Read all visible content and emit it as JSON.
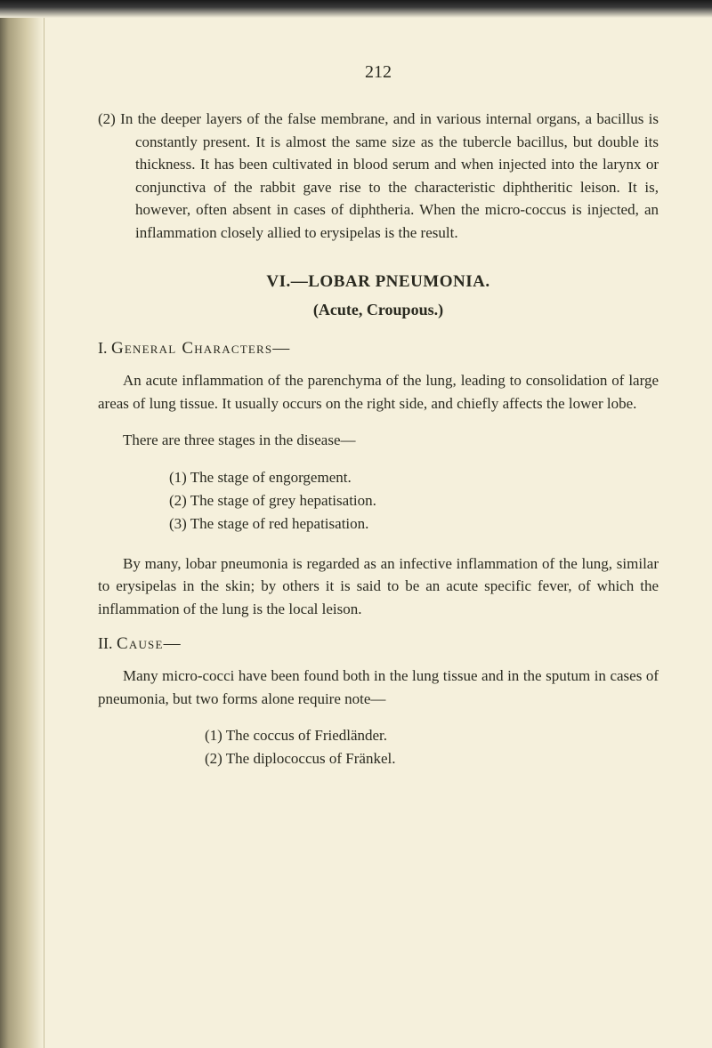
{
  "pageNumber": "212",
  "para1": "(2) In the deeper layers of the false membrane, and in various internal organs, a bacillus is constantly present. It is almost the same size as the tubercle bacillus, but double its thickness. It has been cultivated in blood serum and when injected into the larynx or conjunctiva of the rabbit gave rise to the characteristic diphtheritic leison. It is, however, often absent in cases of diphtheria. When the micro-coccus is injected, an inflammation closely allied to erysipelas is the result.",
  "sectionTitle": "VI.—LOBAR PNEUMONIA.",
  "sectionSubtitle": "(Acute, Croupous.)",
  "heading1Roman": "I. ",
  "heading1Text": "General Characters—",
  "para2": "An acute inflammation of the parenchyma of the lung, leading to consolidation of large areas of lung tissue. It usually occurs on the right side, and chiefly affects the lower lobe.",
  "para3": "There are three stages in the disease—",
  "stages": [
    "(1) The stage of engorgement.",
    "(2) The stage of grey hepatisation.",
    "(3) The stage of red hepatisation."
  ],
  "para4": "By many, lobar pneumonia is regarded as an infective inflammation of the lung, similar to erysipelas in the skin; by others it is said to be an acute specific fever, of which the inflammation of the lung is the local leison.",
  "heading2Roman": "II. ",
  "heading2Text": "Cause—",
  "para5": "Many micro-cocci have been found both in the lung tissue and in the sputum in cases of pneumonia, but two forms alone require note—",
  "causes": [
    "(1) The coccus of Friedländer.",
    "(2) The diplococcus of Fränkel."
  ],
  "colors": {
    "background": "#f5f0dc",
    "text": "#2a2a20",
    "edgeShadow": "#6b6550"
  },
  "typography": {
    "fontFamily": "Georgia, Times New Roman, serif",
    "bodyFontSize": 17,
    "headingFontSize": 19,
    "pageNumberFontSize": 20
  }
}
